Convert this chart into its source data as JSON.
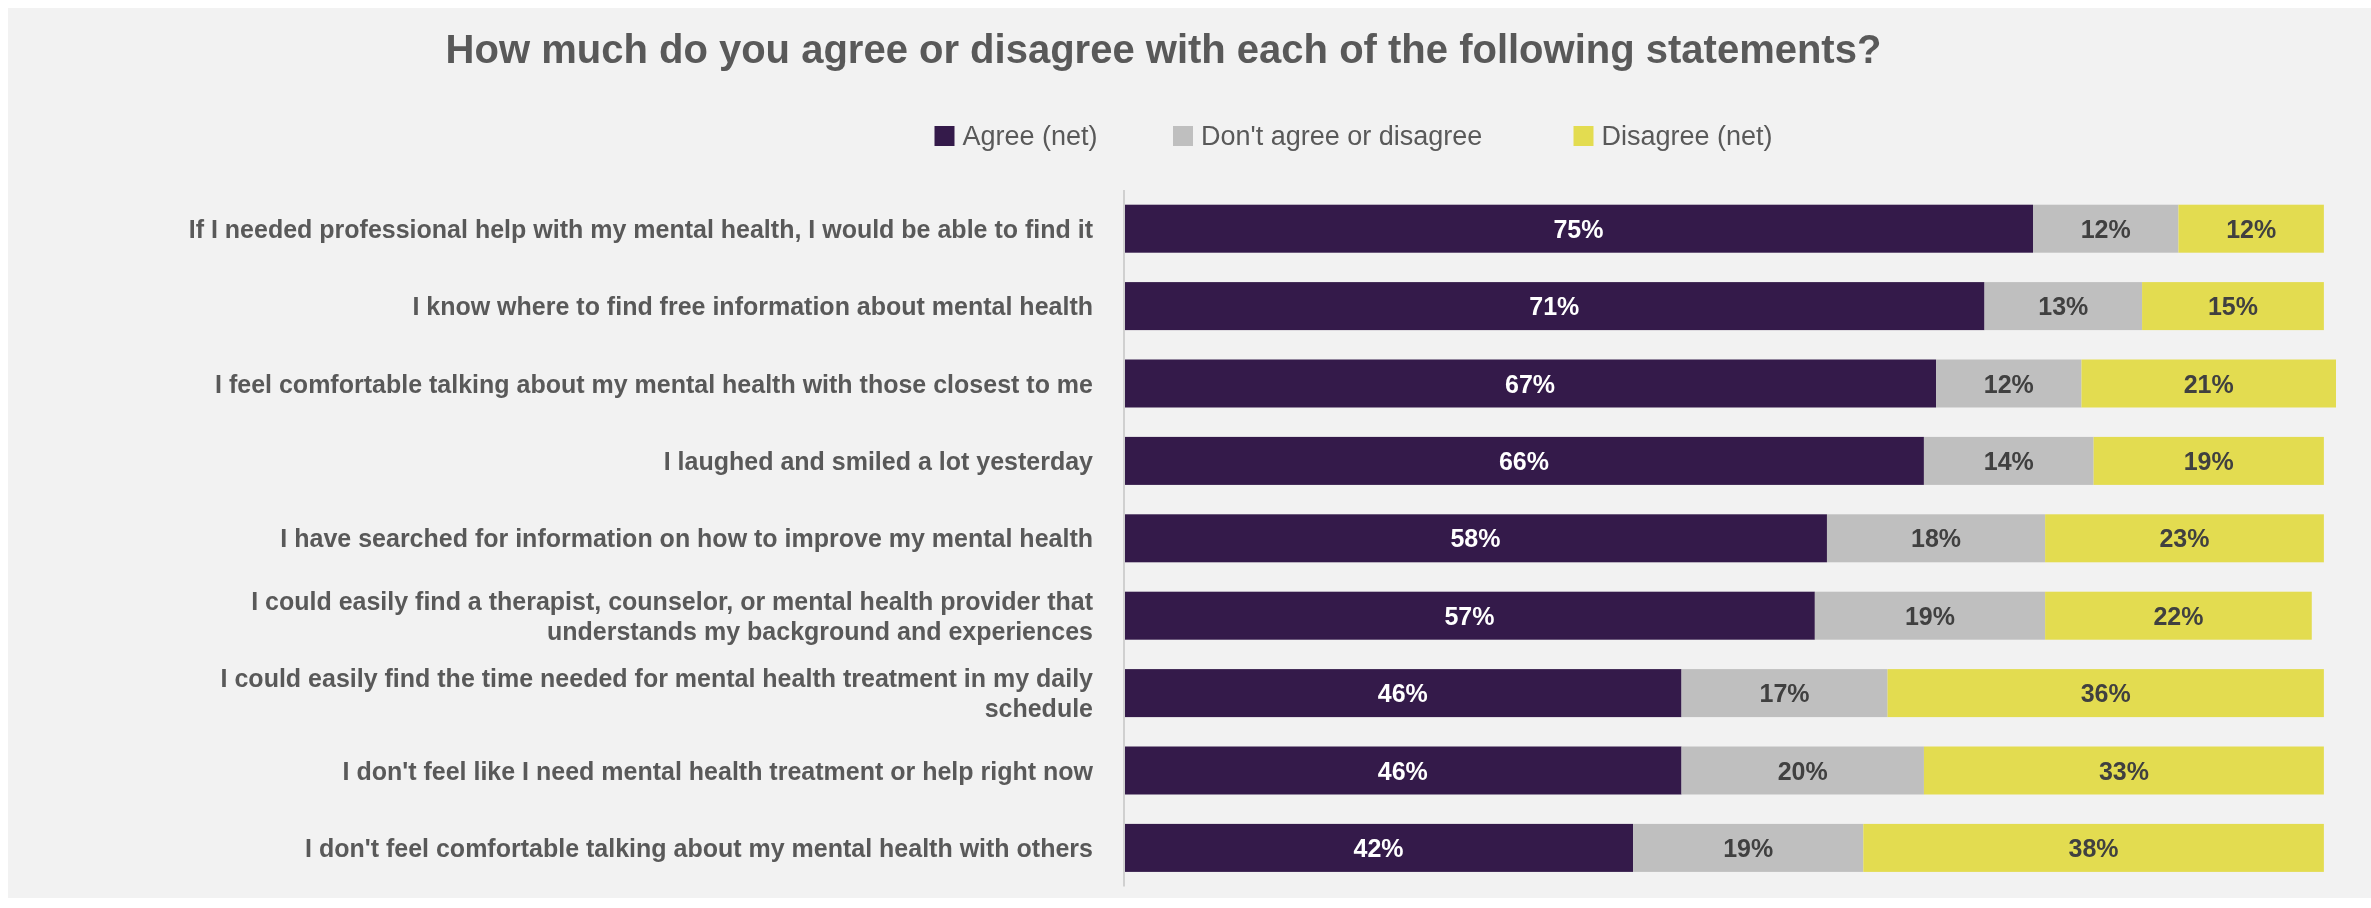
{
  "chart_data": {
    "type": "bar",
    "orientation": "horizontal",
    "stacked": true,
    "title": "How much do you agree or disagree with each of the following statements?",
    "legend": "top",
    "categories": [
      "If I needed professional help with my mental health, I would be able to find it",
      "I know where to find free information about mental health",
      "I feel comfortable talking about my mental health with those closest to me",
      "I laughed and smiled a lot yesterday",
      "I have searched for information on how to improve my mental health",
      "I could easily find a therapist, counselor, or mental health provider that understands my background and experiences",
      "I could easily find the time needed for mental health treatment in my daily schedule",
      "I don't feel like I need mental health treatment or help right now",
      "I don't feel comfortable talking about my mental health with others"
    ],
    "series": [
      {
        "name": "Agree (net)",
        "color": "#341a4a",
        "values": [
          75,
          71,
          67,
          66,
          58,
          57,
          46,
          46,
          42
        ],
        "value_labels": [
          "75%",
          "71%",
          "67%",
          "66%",
          "58%",
          "57%",
          "46%",
          "46%",
          "42%"
        ]
      },
      {
        "name": "Don't agree or disagree",
        "color": "#bfbfbf",
        "values": [
          12,
          13,
          12,
          14,
          18,
          19,
          17,
          20,
          19
        ],
        "value_labels": [
          "12%",
          "13%",
          "12%",
          "14%",
          "18%",
          "19%",
          "17%",
          "20%",
          "19%"
        ]
      },
      {
        "name": "Disagree (net)",
        "color": "#e3dc50",
        "values": [
          12,
          15,
          21,
          19,
          23,
          22,
          36,
          33,
          38
        ],
        "value_labels": [
          "12%",
          "15%",
          "21%",
          "19%",
          "23%",
          "22%",
          "36%",
          "33%",
          "38%"
        ]
      }
    ]
  }
}
